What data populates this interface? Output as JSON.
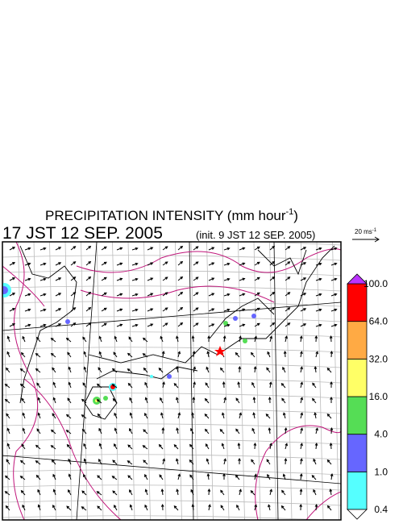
{
  "header": {
    "title": "PRECIPITATION INTENSITY (mm hour",
    "title_sup": "-1",
    "title_end": ")",
    "valid_time": "17 JST 12 SEP. 2005",
    "init_time": "(init. 9 JST 12 SEP. 2005)"
  },
  "reference_vector": {
    "label": "20 ms",
    "sup": "-1"
  },
  "colorbar": {
    "ticks": [
      0.4,
      {
        "value": 1,
        "label": "1.0"
      },
      {
        "value": 4,
        "label": "4.0"
      },
      {
        "value": 16,
        "label": "16.0"
      },
      {
        "value": 32,
        "label": "32.0"
      },
      {
        "value": 64,
        "label": "64.0"
      },
      {
        "value": 100,
        "label": "100.0"
      }
    ],
    "colors": [
      "#55ffff",
      "#6666ff",
      "#55dd55",
      "#ffff66",
      "#ffaa44",
      "#ff0000"
    ],
    "under_color": "#ffffff",
    "over_color": "#bb33ff"
  }
}
